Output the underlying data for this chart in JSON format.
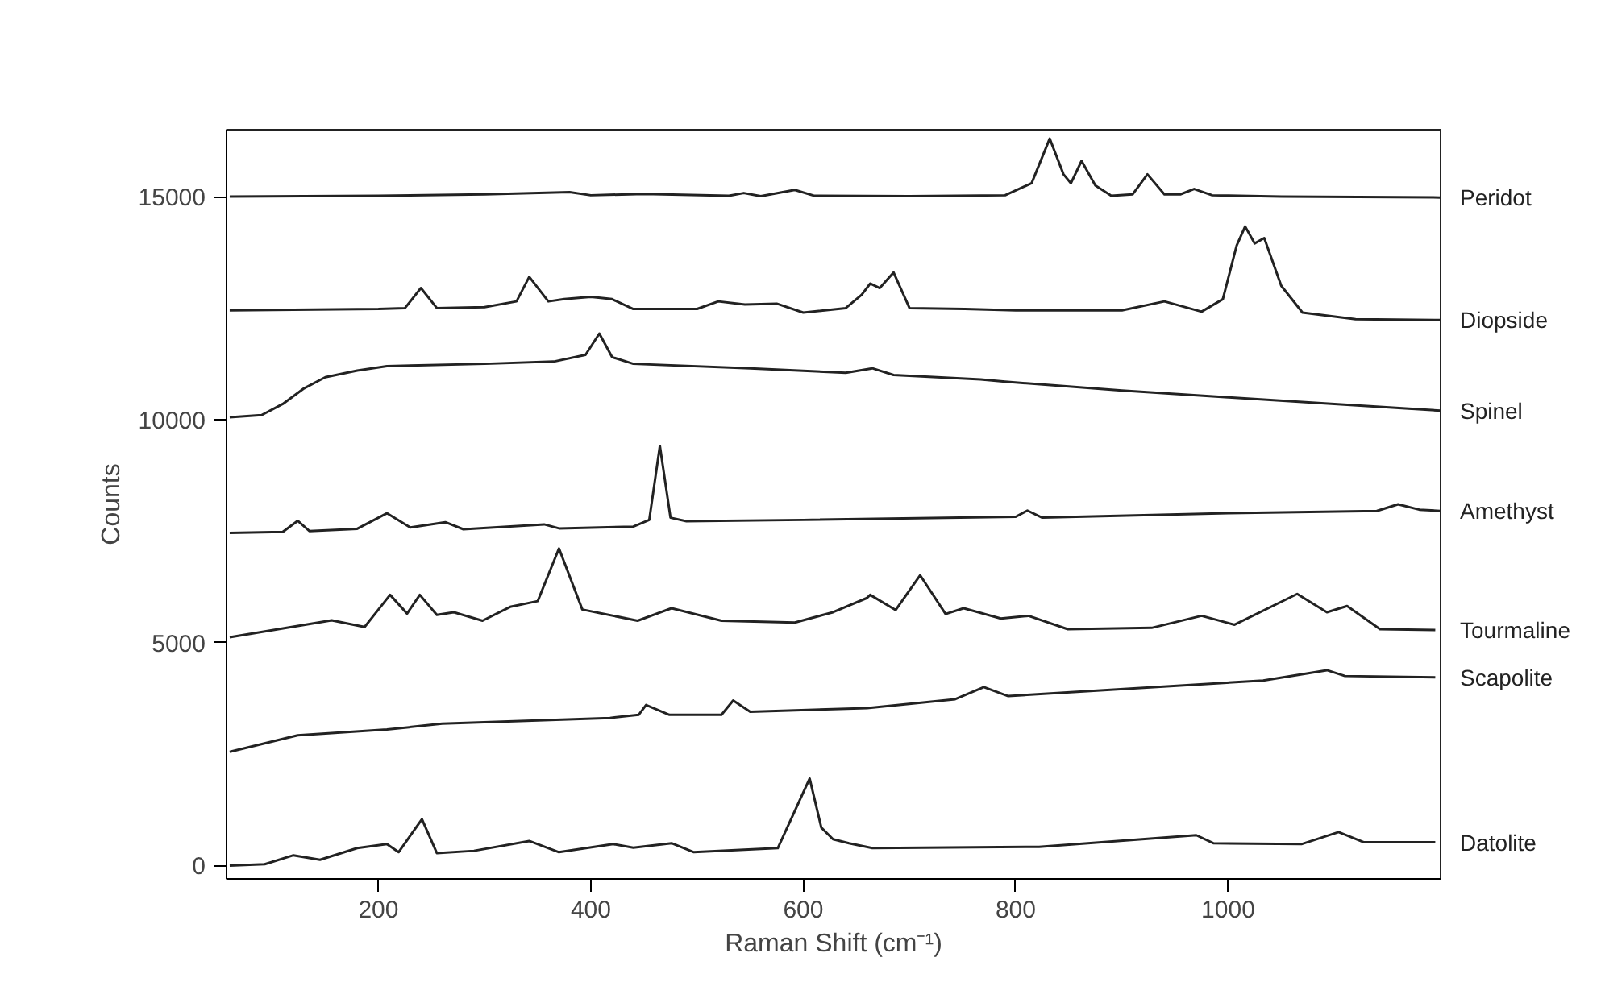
{
  "chart_data": {
    "type": "line",
    "xlabel": "Raman Shift (cm⁻¹)",
    "ylabel": "Counts",
    "xlim": [
      57,
      1200
    ],
    "ylim": [
      -300,
      16500
    ],
    "xticks": [
      200,
      400,
      600,
      800,
      1000
    ],
    "yticks": [
      0,
      5000,
      10000,
      15000
    ],
    "grid": false,
    "marker": "none",
    "line_style": "solid",
    "series": [
      {
        "name": "Peridot",
        "color": "#222222",
        "x": [
          60,
          200,
          300,
          380,
          400,
          450,
          530,
          544,
          560,
          592,
          610,
          700,
          790,
          815,
          832,
          845,
          852,
          862,
          875,
          890,
          910,
          924,
          940,
          955,
          968,
          985,
          1050,
          1200
        ],
        "values": [
          15000,
          15020,
          15050,
          15100,
          15030,
          15060,
          15020,
          15080,
          15010,
          15150,
          15020,
          15010,
          15030,
          15300,
          16300,
          15500,
          15300,
          15800,
          15250,
          15020,
          15050,
          15500,
          15050,
          15050,
          15170,
          15030,
          15000,
          14980
        ]
      },
      {
        "name": "Diopside",
        "color": "#222222",
        "x": [
          60,
          200,
          225,
          240,
          255,
          300,
          330,
          342,
          360,
          375,
          400,
          420,
          440,
          500,
          520,
          545,
          575,
          600,
          640,
          655,
          663,
          672,
          685,
          700,
          752,
          800,
          900,
          940,
          975,
          995,
          1008,
          1016,
          1025,
          1034,
          1050,
          1070,
          1120,
          1200
        ],
        "values": [
          12450,
          12480,
          12500,
          12950,
          12500,
          12520,
          12650,
          13200,
          12650,
          12700,
          12750,
          12700,
          12480,
          12480,
          12650,
          12580,
          12600,
          12400,
          12500,
          12800,
          13050,
          12950,
          13300,
          12500,
          12480,
          12450,
          12450,
          12650,
          12420,
          12700,
          13900,
          14330,
          13950,
          14070,
          13000,
          12400,
          12250,
          12230
        ]
      },
      {
        "name": "Spinel",
        "color": "#222222",
        "x": [
          60,
          90,
          110,
          130,
          150,
          180,
          208,
          300,
          365,
          395,
          408,
          420,
          440,
          550,
          640,
          665,
          685,
          767,
          790,
          900,
          1000,
          1100,
          1200
        ],
        "values": [
          10050,
          10100,
          10350,
          10700,
          10950,
          11100,
          11200,
          11250,
          11300,
          11450,
          11930,
          11400,
          11250,
          11150,
          11050,
          11150,
          11000,
          10900,
          10850,
          10650,
          10500,
          10350,
          10200
        ]
      },
      {
        "name": "Amethyst",
        "color": "#222222",
        "x": [
          60,
          110,
          124,
          135,
          180,
          208,
          230,
          263,
          280,
          356,
          370,
          440,
          455,
          465,
          475,
          490,
          600,
          800,
          811,
          825,
          1000,
          1140,
          1160,
          1180,
          1200
        ],
        "values": [
          7460,
          7480,
          7730,
          7500,
          7550,
          7900,
          7580,
          7700,
          7540,
          7650,
          7560,
          7600,
          7750,
          9410,
          7800,
          7720,
          7750,
          7820,
          7960,
          7800,
          7900,
          7950,
          8100,
          7980,
          7950
        ]
      },
      {
        "name": "Tourmaline",
        "color": "#222222",
        "x": [
          60,
          156,
          187,
          211,
          227,
          239,
          255,
          271,
          298,
          324,
          350,
          370,
          392,
          444,
          476,
          523,
          592,
          628,
          660,
          663,
          687,
          710,
          734,
          751,
          786,
          812,
          849,
          928,
          975,
          1006,
          1065,
          1093,
          1112,
          1143,
          1195
        ],
        "values": [
          5120,
          5500,
          5350,
          6070,
          5650,
          6070,
          5620,
          5680,
          5490,
          5800,
          5930,
          7110,
          5740,
          5490,
          5770,
          5490,
          5450,
          5680,
          6000,
          6070,
          5730,
          6510,
          5640,
          5770,
          5540,
          5600,
          5300,
          5330,
          5600,
          5400,
          6090,
          5680,
          5820,
          5300,
          5280
        ]
      },
      {
        "name": "Scapolite",
        "color": "#222222",
        "x": [
          60,
          124,
          208,
          260,
          418,
          445,
          452,
          474,
          523,
          534,
          550,
          660,
          743,
          770,
          793,
          1033,
          1093,
          1110,
          1195
        ],
        "values": [
          2550,
          2920,
          3050,
          3180,
          3310,
          3380,
          3600,
          3380,
          3380,
          3700,
          3450,
          3530,
          3730,
          4000,
          3800,
          4150,
          4380,
          4250,
          4220
        ]
      },
      {
        "name": "Datolite",
        "color": "#222222",
        "x": [
          60,
          93,
          120,
          145,
          180,
          208,
          219,
          241,
          255,
          290,
          342,
          370,
          421,
          440,
          476,
          497,
          576,
          606,
          617,
          628,
          643,
          665,
          822,
          970,
          986,
          1069,
          1104,
          1128,
          1195
        ],
        "values": [
          0,
          30,
          230,
          130,
          390,
          480,
          300,
          1040,
          280,
          330,
          550,
          300,
          480,
          400,
          500,
          300,
          390,
          1950,
          850,
          590,
          500,
          390,
          420,
          680,
          500,
          480,
          750,
          520,
          520
        ]
      }
    ]
  }
}
